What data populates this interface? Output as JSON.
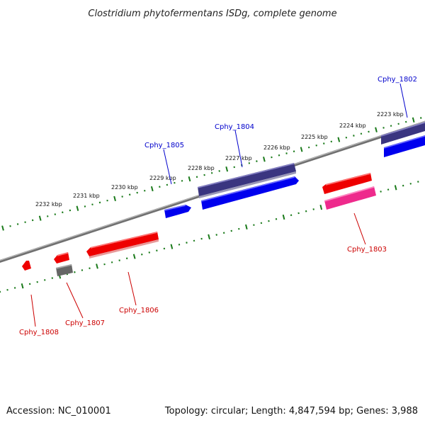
{
  "title": "Clostridium phytofermentans ISDg, complete genome",
  "footer": {
    "accession": "Accession: NC_010001",
    "summary": "Topology: circular; Length: 4,847,594 bp; Genes: 3,988"
  },
  "colors": {
    "backbone": "#808080",
    "tick": "#1a7a1a",
    "forward_label": "#0000cc",
    "reverse_label": "#cc0000",
    "gene_red": "#ee0000",
    "gene_blue": "#0000ee",
    "gene_navy": "#3a3580",
    "gene_pink": "#ee2a8c",
    "gene_gray": "#666666"
  },
  "scale_labels": [
    "2223 kbp",
    "2224 kbp",
    "2225 kbp",
    "2226 kbp",
    "2227 kbp",
    "2228 kbp",
    "2229 kbp",
    "2230 kbp",
    "2231 kbp",
    "2232 kbp"
  ],
  "genes": [
    {
      "name": "Cphy_1802",
      "color": "blue"
    },
    {
      "name": "Cphy_1803",
      "color": "red"
    },
    {
      "name": "Cphy_1804",
      "color": "blue"
    },
    {
      "name": "Cphy_1805",
      "color": "blue"
    },
    {
      "name": "Cphy_1806",
      "color": "red"
    },
    {
      "name": "Cphy_1807",
      "color": "red"
    },
    {
      "name": "Cphy_1808",
      "color": "red"
    }
  ]
}
